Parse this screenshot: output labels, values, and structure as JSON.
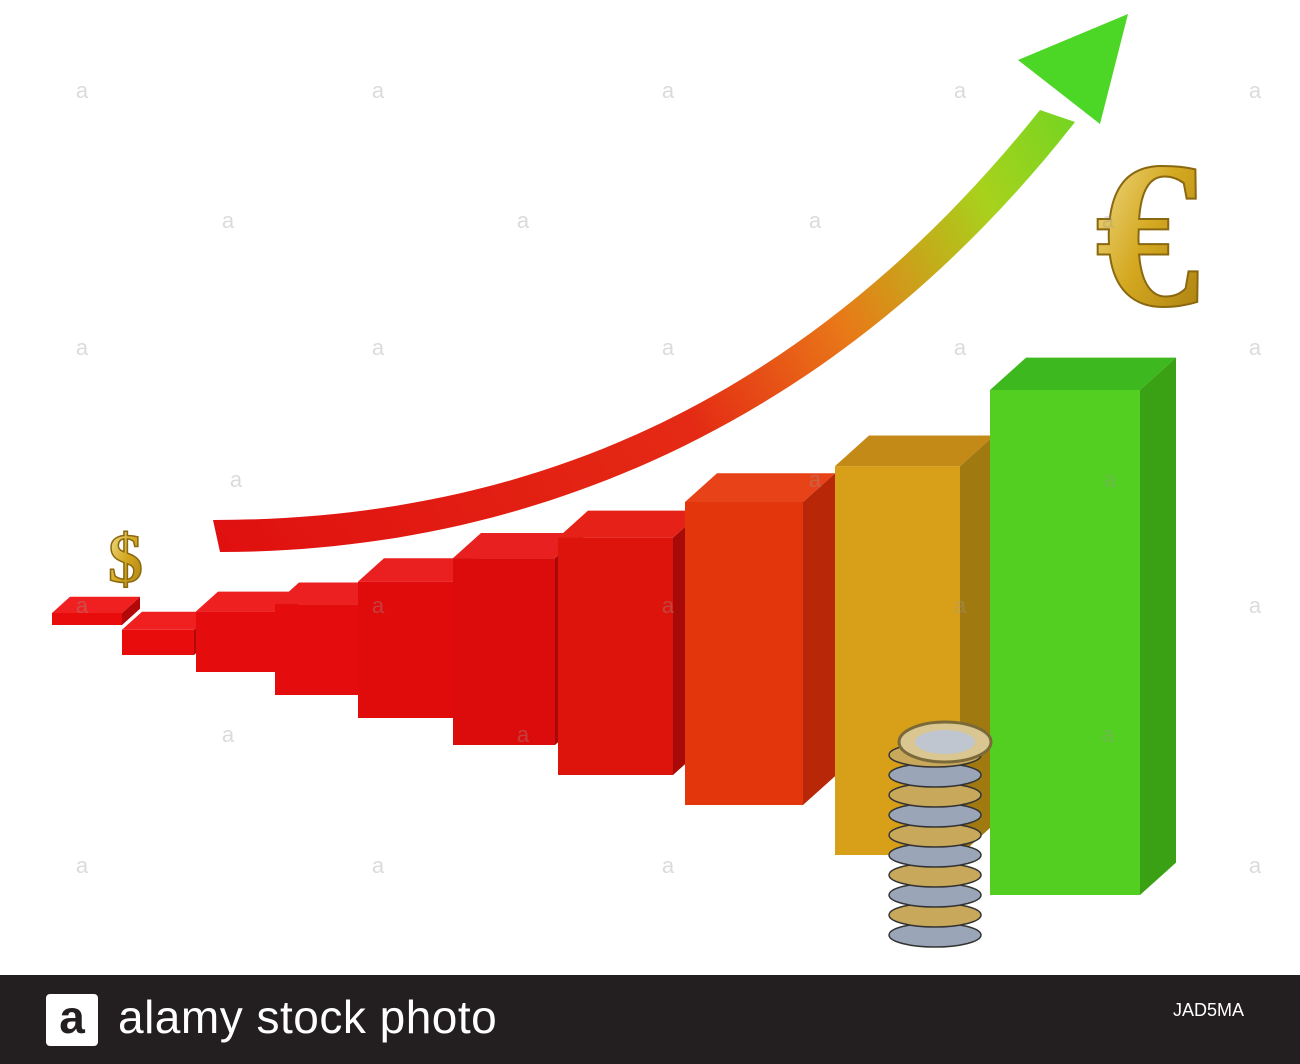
{
  "scene": {
    "description_marks": {
      "dollar_symbol": "$",
      "euro_symbol": "€"
    },
    "bar_heights_relative": [
      0.02,
      0.05,
      0.12,
      0.18,
      0.27,
      0.37,
      0.47,
      0.6,
      0.77,
      1.0
    ],
    "colors": {
      "red": "#e01010",
      "orange": "#e65a10",
      "yellow": "#d9c020",
      "green": "#4ed21a",
      "gold": "#d4a820"
    }
  },
  "watermark": {
    "letter": "a",
    "brand": "alamy"
  },
  "footer": {
    "logo_letter": "a",
    "text": "alamy stock photo",
    "image_id": "JAD5MA"
  }
}
